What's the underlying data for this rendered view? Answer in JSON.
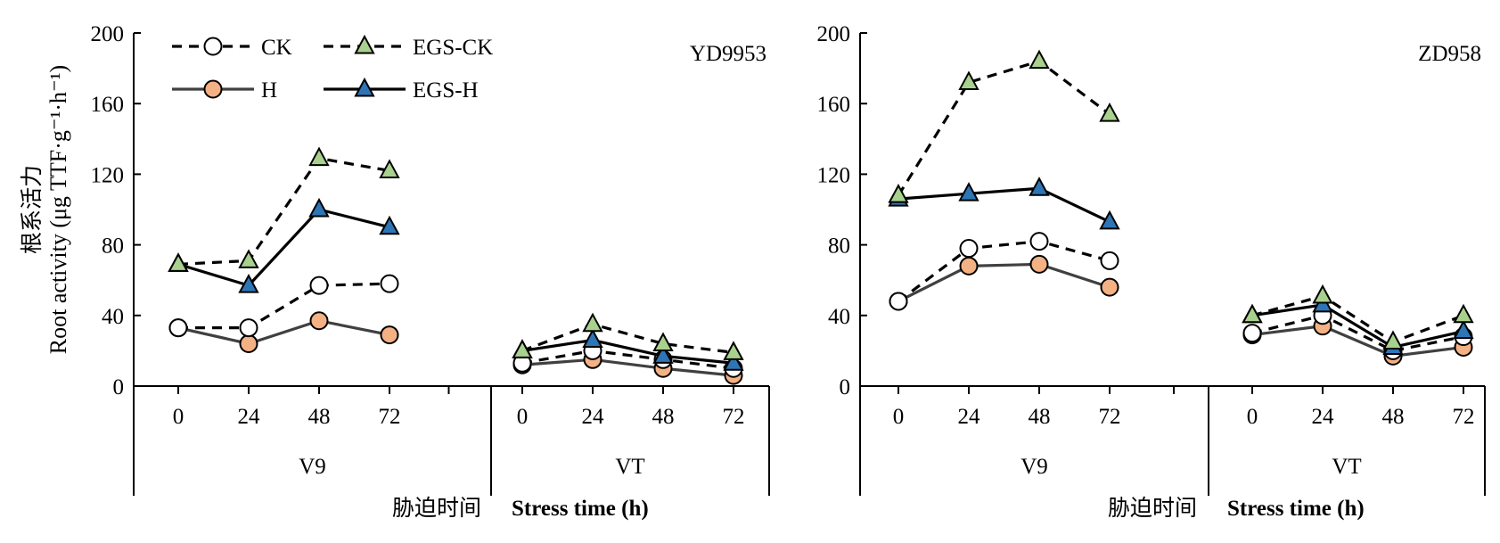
{
  "figure": {
    "ylabel_cn": "根系活力",
    "ylabel_en": "Root activity (μg TTF·g⁻¹·h⁻¹)",
    "xlabel_cn": "胁迫时间",
    "xlabel_en": "Stress time (h)"
  },
  "legend": [
    {
      "name": "CK",
      "line": "dashed",
      "marker": "circle",
      "fill": "#ffffff"
    },
    {
      "name": "EGS-CK",
      "line": "dashed",
      "marker": "triangle",
      "fill": "#a9d18e"
    },
    {
      "name": "H",
      "line": "solid",
      "marker": "circle",
      "fill": "#f4b183"
    },
    {
      "name": "EGS-H",
      "line": "solid",
      "marker": "triangle",
      "fill": "#2e75b6"
    }
  ],
  "colors": {
    "CK": "#ffffff",
    "EGS-CK": "#a9d18e",
    "H": "#f4b183",
    "EGS-H": "#2e75b6",
    "H_line": "#404040",
    "axis": "#000000"
  },
  "chart_data": [
    {
      "type": "line",
      "title": "YD9953",
      "ylim": [
        0,
        200
      ],
      "yticks": [
        0,
        40,
        80,
        120,
        160,
        200
      ],
      "groups": [
        "V9",
        "VT"
      ],
      "x": [
        0,
        24,
        48,
        72
      ],
      "series": [
        {
          "name": "CK",
          "V9": [
            33,
            33,
            57,
            58
          ],
          "VT": [
            13,
            20,
            15,
            10
          ]
        },
        {
          "name": "EGS-CK",
          "V9": [
            69,
            71,
            129,
            122
          ],
          "VT": [
            20,
            35,
            24,
            19
          ]
        },
        {
          "name": "H",
          "V9": [
            33,
            24,
            37,
            29
          ],
          "VT": [
            12,
            15,
            10,
            6
          ]
        },
        {
          "name": "EGS-H",
          "V9": [
            69,
            57,
            100,
            90
          ],
          "VT": [
            20,
            26,
            17,
            13
          ]
        }
      ]
    },
    {
      "type": "line",
      "title": "ZD958",
      "ylim": [
        0,
        200
      ],
      "yticks": [
        0,
        40,
        80,
        120,
        160,
        200
      ],
      "groups": [
        "V9",
        "VT"
      ],
      "x": [
        0,
        24,
        48,
        72
      ],
      "series": [
        {
          "name": "CK",
          "V9": [
            48,
            78,
            82,
            71
          ],
          "VT": [
            30,
            40,
            20,
            28
          ]
        },
        {
          "name": "EGS-CK",
          "V9": [
            108,
            172,
            184,
            154
          ],
          "VT": [
            40,
            51,
            25,
            40
          ]
        },
        {
          "name": "H",
          "V9": [
            48,
            68,
            69,
            56
          ],
          "VT": [
            29,
            34,
            17,
            22
          ]
        },
        {
          "name": "EGS-H",
          "V9": [
            106,
            109,
            112,
            93
          ],
          "VT": [
            40,
            46,
            22,
            31
          ]
        }
      ]
    }
  ]
}
